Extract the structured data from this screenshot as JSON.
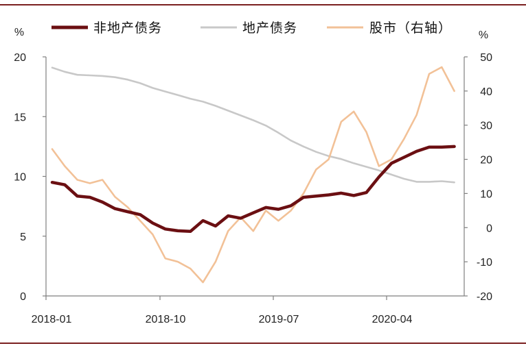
{
  "chart_data": {
    "type": "line",
    "left_unit": "%",
    "right_unit": "%",
    "left_ticks": [
      "0",
      "5",
      "10",
      "15",
      "20"
    ],
    "right_ticks": [
      "-20",
      "-10",
      "0",
      "10",
      "20",
      "30",
      "40",
      "50"
    ],
    "x_ticks": [
      "2018-01",
      "2018-10",
      "2019-07",
      "2020-04"
    ],
    "ylim_left": [
      0,
      20
    ],
    "ylim_right": [
      -20,
      50
    ],
    "x_start": "2018-01",
    "x_end": "2020-12",
    "legend_position": "top",
    "series": [
      {
        "name": "非地产债务",
        "axis": "left",
        "color": "#6B0F12",
        "values": [
          9.5,
          9.3,
          8.35,
          8.25,
          7.85,
          7.3,
          7.05,
          6.8,
          6.1,
          5.6,
          5.45,
          5.4,
          6.3,
          5.85,
          6.7,
          6.5,
          6.95,
          7.4,
          7.25,
          7.55,
          8.25,
          8.35,
          8.45,
          8.6,
          8.4,
          8.65,
          9.95,
          11.1,
          11.6,
          12.1,
          12.45,
          12.45,
          12.5
        ]
      },
      {
        "name": "地产债务",
        "axis": "left",
        "color": "#C8C8C8",
        "values": [
          19.1,
          18.75,
          18.5,
          18.45,
          18.4,
          18.3,
          18.1,
          17.8,
          17.4,
          17.1,
          16.8,
          16.5,
          16.25,
          15.9,
          15.5,
          15.1,
          14.7,
          14.25,
          13.65,
          13.0,
          12.5,
          12.05,
          11.7,
          11.45,
          11.1,
          10.8,
          10.5,
          10.15,
          9.8,
          9.55,
          9.55,
          9.6,
          9.5
        ]
      },
      {
        "name": "股市（右轴）",
        "axis": "right",
        "color": "#F2C197",
        "values": [
          23,
          18,
          14,
          13,
          14,
          9,
          6,
          2,
          -2,
          -9,
          -10,
          -12,
          -16,
          -10,
          -1,
          3,
          -1,
          5,
          2,
          5,
          10,
          17,
          20,
          31,
          34,
          28,
          18,
          20,
          26,
          33,
          45,
          47,
          40
        ]
      }
    ]
  }
}
